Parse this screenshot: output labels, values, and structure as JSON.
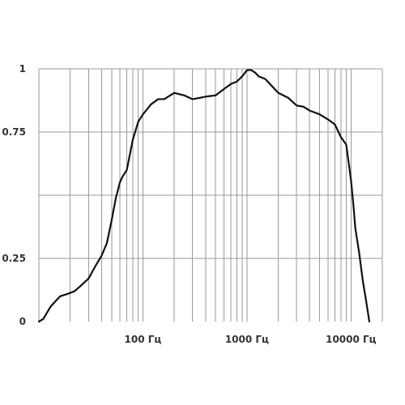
{
  "chart_data": {
    "type": "line",
    "title": "",
    "xlabel": "",
    "ylabel": "",
    "xscale": "log",
    "xlim": [
      10,
      20000
    ],
    "ylim": [
      0,
      1
    ],
    "grid": true,
    "legend": "none",
    "line_color": "#111111",
    "grid_color": "#9a9a9a",
    "x_ticks": [
      {
        "value": 100,
        "label": "100 Гц"
      },
      {
        "value": 1000,
        "label": "1000 Гц"
      },
      {
        "value": 10000,
        "label": "10000 Гц"
      }
    ],
    "y_ticks": [
      {
        "value": 0,
        "label": "0"
      },
      {
        "value": 0.25,
        "label": "0.25"
      },
      {
        "value": 0.75,
        "label": "0.75"
      },
      {
        "value": 1,
        "label": "1"
      }
    ],
    "y_gridlines": [
      0.25,
      0.5,
      0.75,
      1
    ],
    "series": [
      {
        "x": [
          10,
          11,
          13,
          16,
          19,
          22,
          25,
          30,
          35,
          40,
          45,
          50,
          55,
          60,
          63,
          70,
          80,
          90,
          100,
          120,
          140,
          160,
          200,
          250,
          300,
          350,
          400,
          500,
          600,
          700,
          800,
          900,
          1000,
          1100,
          1200,
          1300,
          1500,
          1800,
          2000,
          2500,
          3000,
          3500,
          4000,
          5000,
          6000,
          7000,
          8000,
          9000,
          10000,
          10500,
          11000,
          12000,
          13000,
          14000,
          15000
        ],
        "y": [
          0,
          0.01,
          0.06,
          0.1,
          0.11,
          0.12,
          0.14,
          0.17,
          0.22,
          0.26,
          0.31,
          0.4,
          0.49,
          0.55,
          0.57,
          0.6,
          0.72,
          0.79,
          0.82,
          0.86,
          0.88,
          0.88,
          0.905,
          0.895,
          0.88,
          0.885,
          0.89,
          0.895,
          0.92,
          0.94,
          0.95,
          0.97,
          0.995,
          0.995,
          0.985,
          0.97,
          0.96,
          0.925,
          0.905,
          0.885,
          0.855,
          0.85,
          0.835,
          0.82,
          0.8,
          0.78,
          0.73,
          0.7,
          0.56,
          0.47,
          0.37,
          0.27,
          0.16,
          0.08,
          0
        ]
      }
    ]
  }
}
